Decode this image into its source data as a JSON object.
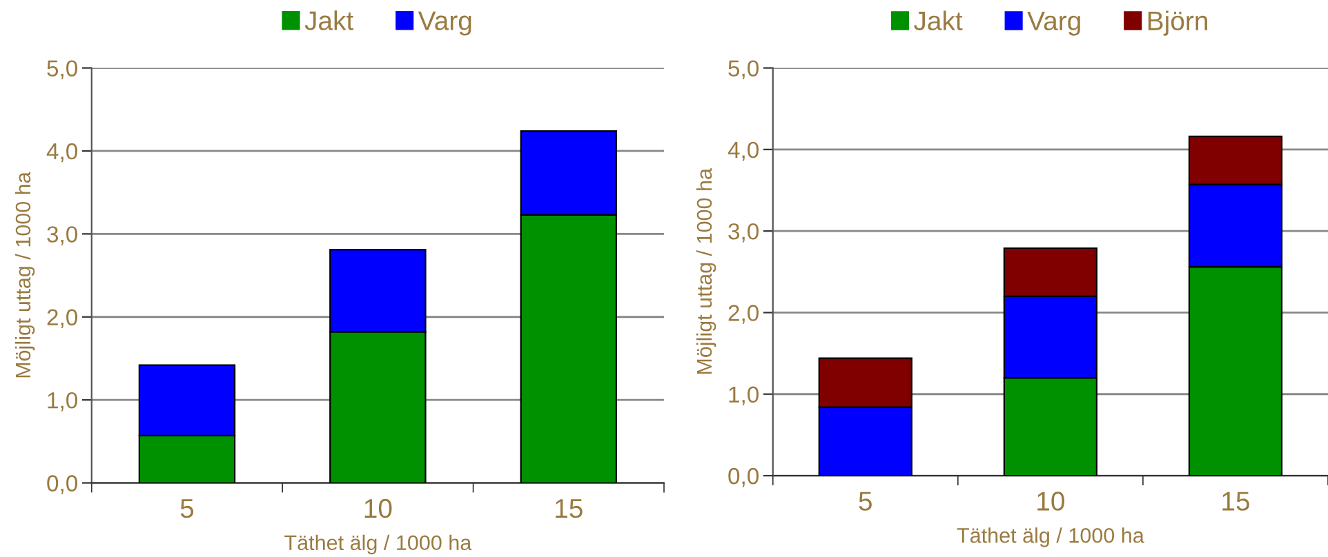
{
  "chart_data": [
    {
      "type": "bar",
      "stacked": true,
      "categories": [
        "5",
        "10",
        "15"
      ],
      "xlabel": "Täthet älg / 1000 ha",
      "ylabel": "Möjligt uttag / 1000 ha",
      "ylim": [
        0,
        5
      ],
      "yticks": [
        {
          "value": 0,
          "label": "0,0"
        },
        {
          "value": 1,
          "label": "1,0"
        },
        {
          "value": 2,
          "label": "2,0"
        },
        {
          "value": 3,
          "label": "3,0"
        },
        {
          "value": 4,
          "label": "4,0"
        },
        {
          "value": 5,
          "label": "5,0"
        }
      ],
      "grid": "y",
      "legend": "top",
      "series": [
        {
          "name": "Jakt",
          "color": "#009100",
          "values": [
            0.57,
            1.82,
            3.23
          ]
        },
        {
          "name": "Varg",
          "color": "#0000ff",
          "values": [
            0.85,
            0.99,
            1.01
          ]
        }
      ]
    },
    {
      "type": "bar",
      "stacked": true,
      "categories": [
        "5",
        "10",
        "15"
      ],
      "xlabel": "Täthet älg / 1000 ha",
      "ylabel": "Möjligt uttag / 1000 ha",
      "ylim": [
        0,
        5
      ],
      "yticks": [
        {
          "value": 0,
          "label": "0,0"
        },
        {
          "value": 1,
          "label": "1,0"
        },
        {
          "value": 2,
          "label": "2,0"
        },
        {
          "value": 3,
          "label": "3,0"
        },
        {
          "value": 4,
          "label": "4,0"
        },
        {
          "value": 5,
          "label": "5,0"
        }
      ],
      "grid": "y",
      "legend": "top",
      "series": [
        {
          "name": "Jakt",
          "color": "#009100",
          "values": [
            0,
            1.2,
            2.56
          ]
        },
        {
          "name": "Varg",
          "color": "#0000ff",
          "values": [
            0.84,
            1.0,
            1.01
          ]
        },
        {
          "name": "Björn",
          "color": "#800000",
          "values": [
            0.6,
            0.59,
            0.59
          ]
        }
      ]
    }
  ]
}
